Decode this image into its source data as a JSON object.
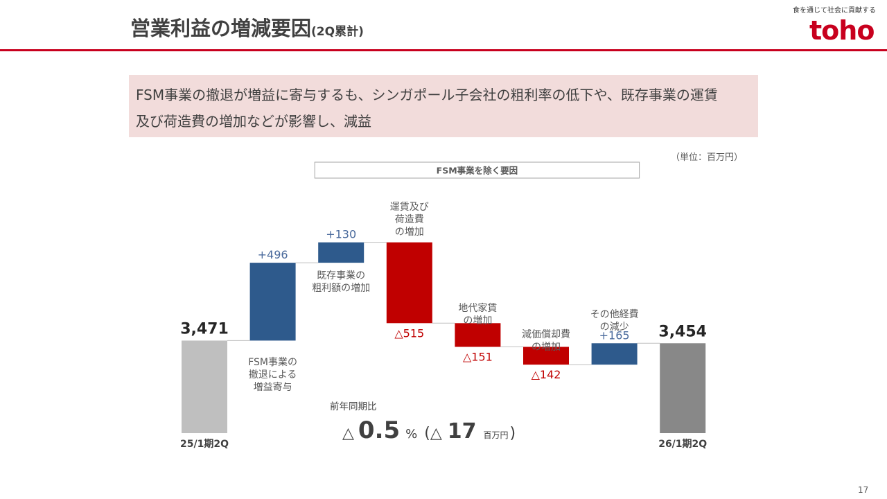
{
  "header": {
    "title": "営業利益の増減要因",
    "title_suffix": "(2Q累計)",
    "tagline": "食を通じて社会に貢献する",
    "logo_text": "toho"
  },
  "callout": {
    "line1": "FSM事業の撤退が増益に寄与するも、シンガポール子会社の粗利率の低下や、既存事業の運賃",
    "line2": "及び荷造費の増加などが影響し、減益"
  },
  "unit_label": "（単位：百万円）",
  "page_number": "17",
  "colors": {
    "accent": "#c8001e",
    "increase": "#2e5a8c",
    "decrease": "#c00000",
    "start": "#bfbfbf",
    "end": "#888888",
    "callout_bg": "#f2dcdb"
  },
  "chart_data": {
    "type": "bar",
    "subtype": "waterfall",
    "bracket_label": "FSM事業を除く要因",
    "steps": [
      {
        "kind": "total",
        "value": 3471,
        "value_label": "3,471",
        "category": "25/1期2Q"
      },
      {
        "kind": "delta",
        "value": 496,
        "value_label": "+496",
        "category": "FSM事業の撤退による増益寄与",
        "category_lines": [
          "FSM事業の",
          "撤退による",
          "増益寄与"
        ]
      },
      {
        "kind": "delta",
        "value": 130,
        "value_label": "+130",
        "category": "既存事業の粗利額の増加",
        "category_lines": [
          "既存事業の",
          "粗利額の増加"
        ]
      },
      {
        "kind": "delta",
        "value": -515,
        "value_label": "△515",
        "category": "運賃及び荷造費の増加",
        "category_lines": [
          "運賃及び",
          "荷造費",
          "の増加"
        ]
      },
      {
        "kind": "delta",
        "value": -151,
        "value_label": "△151",
        "category": "地代家賃の増加",
        "category_lines": [
          "地代家賃",
          "の増加"
        ]
      },
      {
        "kind": "delta",
        "value": -142,
        "value_label": "△142",
        "category": "減価償却費の増加",
        "category_lines": [
          "減価償却費",
          "の増加"
        ]
      },
      {
        "kind": "delta",
        "value": 165,
        "value_label": "+165",
        "category": "その他経費の減少",
        "category_lines": [
          "その他経費",
          "の減少"
        ]
      },
      {
        "kind": "total",
        "value": 3454,
        "value_label": "3,454",
        "category": "26/1期2Q"
      }
    ],
    "yoy": {
      "label": "前年同期比",
      "prefix": "△",
      "percent": "0.5",
      "percent_unit": "%",
      "open": "(",
      "amount_prefix": "△",
      "amount": "17",
      "amount_unit": "百万円",
      "close": ")"
    }
  }
}
